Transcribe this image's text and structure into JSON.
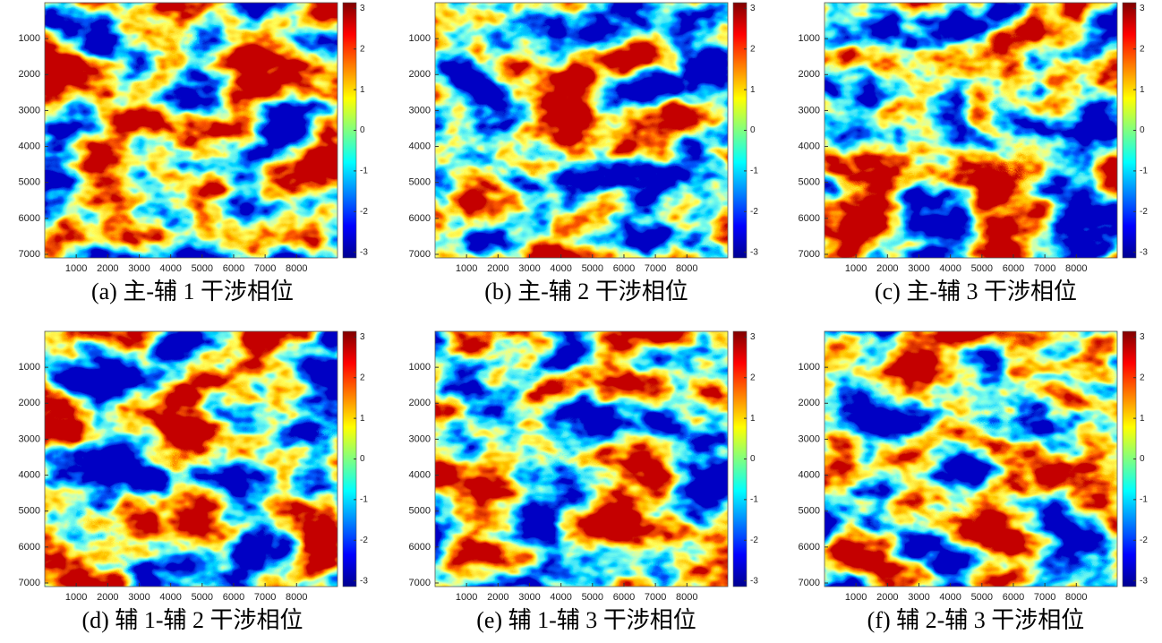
{
  "axes": {
    "xlim": [
      0,
      9300
    ],
    "ylim": [
      0,
      7100
    ],
    "xticks": [
      1000,
      2000,
      3000,
      4000,
      5000,
      6000,
      7000,
      8000
    ],
    "yticks": [
      1000,
      2000,
      3000,
      4000,
      5000,
      6000,
      7000
    ],
    "clim": [
      -3.14,
      3.14
    ],
    "cticks": [
      3,
      2,
      1,
      0,
      -1,
      -2,
      -3
    ],
    "colormap": "jet"
  },
  "panels": [
    {
      "caption": "(a)  主-辅 1 干涉相位"
    },
    {
      "caption": "(b)  主-辅 2 干涉相位"
    },
    {
      "caption": "(c)  主-辅 3 干涉相位"
    },
    {
      "caption": "(d)  辅 1-辅 2 干涉相位"
    },
    {
      "caption": "(e)  辅 1-辅 3 干涉相位"
    },
    {
      "caption": "(f)  辅 2-辅 3 干涉相位"
    }
  ]
}
